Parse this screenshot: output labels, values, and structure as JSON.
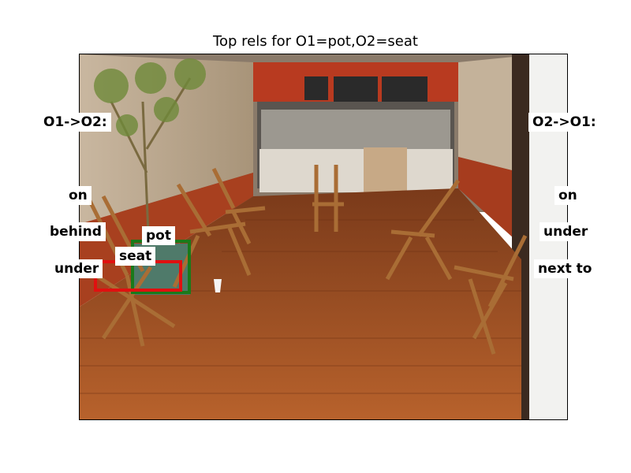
{
  "title": "Top rels for O1=pot,O2=seat",
  "left_panel": {
    "header": "O1->O2:",
    "relations": [
      "on",
      "behind",
      "under"
    ]
  },
  "right_panel": {
    "header": "O2->O1:",
    "relations": [
      "on",
      "under",
      "next to"
    ]
  },
  "objects": [
    {
      "label": "pot",
      "box_color": "#1a7a1a"
    },
    {
      "label": "seat",
      "box_color": "#e01010"
    }
  ],
  "scene": "cafe interior with wooden chairs and wooden floor"
}
